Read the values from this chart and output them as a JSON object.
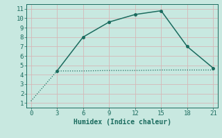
{
  "line1_x": [
    0,
    3,
    6,
    9,
    12,
    15,
    18,
    21
  ],
  "line1_y": [
    1.2,
    4.4,
    4.4,
    4.45,
    4.45,
    4.5,
    4.5,
    4.5
  ],
  "line2_x": [
    3,
    6,
    9,
    12,
    15,
    18,
    21
  ],
  "line2_y": [
    4.4,
    8.0,
    9.6,
    10.4,
    10.8,
    7.0,
    4.7
  ],
  "line_color": "#1a6b5e",
  "bg_color": "#c8e8e0",
  "grid_color_major": "#e8c8c8",
  "grid_color_minor": "#ffffff",
  "xlabel": "Humidex (Indice chaleur)",
  "xlim": [
    -0.5,
    21.5
  ],
  "ylim": [
    0.5,
    11.5
  ],
  "xticks": [
    0,
    3,
    6,
    9,
    12,
    15,
    18,
    21
  ],
  "yticks": [
    1,
    2,
    3,
    4,
    5,
    6,
    7,
    8,
    9,
    10,
    11
  ],
  "xlabel_fontsize": 7,
  "tick_fontsize": 6.5
}
